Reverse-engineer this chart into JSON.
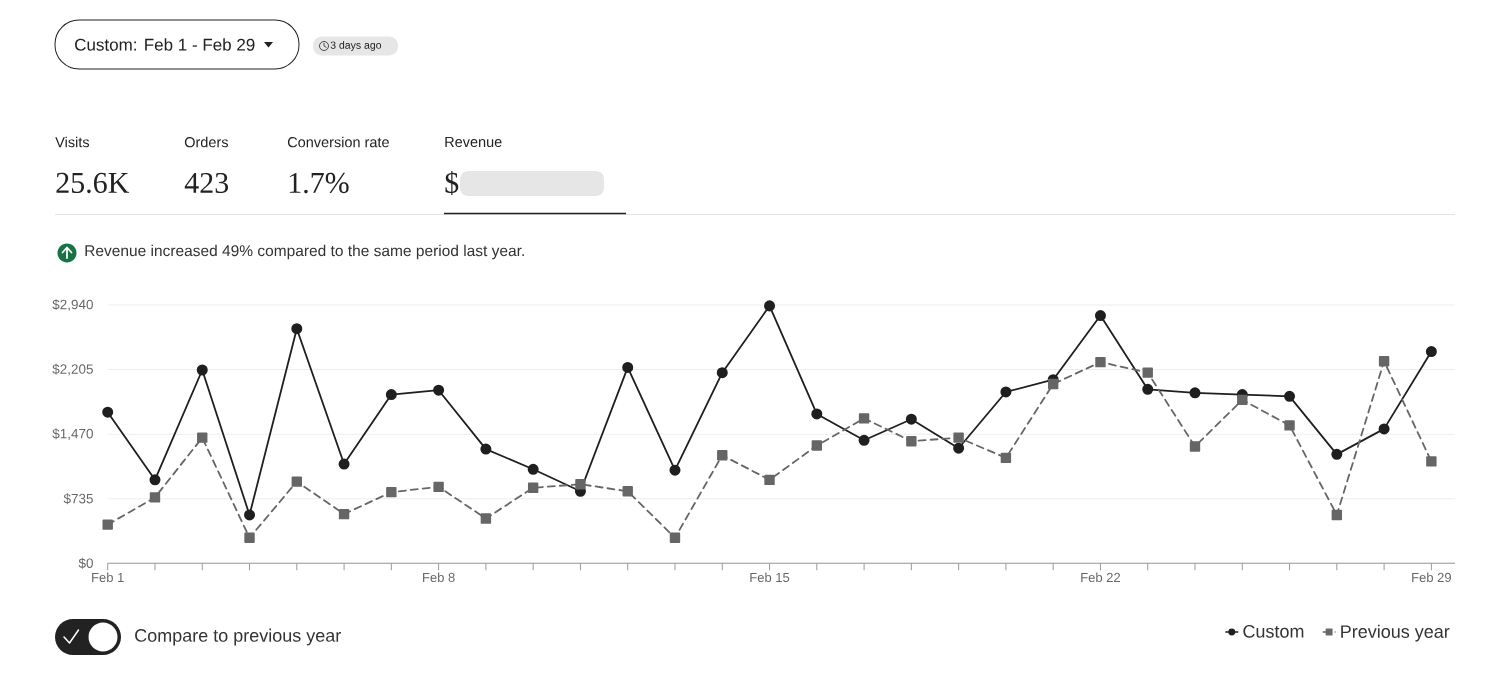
{
  "chart_data": {
    "type": "line",
    "title": "Custom: Feb 1 - Feb 29",
    "subtitle": "3 days ago",
    "annotations": [
      "Visits",
      "25.6K",
      "Orders",
      "423",
      "Conversion rate",
      "1.7%",
      "Revenue",
      "$",
      "Revenue increased 49% compared to the same period last year.",
      "Compare to previous year"
    ],
    "categories": [
      "Feb 1",
      null,
      null,
      null,
      null,
      null,
      null,
      "Feb 8",
      null,
      null,
      null,
      null,
      null,
      null,
      "Feb 15",
      null,
      null,
      null,
      null,
      null,
      null,
      "Feb 22",
      null,
      null,
      null,
      null,
      null,
      null,
      "Feb 29"
    ],
    "series": [
      {
        "name": "Custom",
        "color": "#1f1f1f",
        "marker": "circle",
        "line_style": "solid",
        "values": [
          1720,
          950,
          2200,
          550,
          2670,
          1130,
          1920,
          1970,
          1300,
          1070,
          820,
          2230,
          1060,
          2170,
          2930,
          1700,
          1400,
          1640,
          1310,
          1950,
          2090,
          2820,
          1980,
          1940,
          1920,
          1900,
          1240,
          1530,
          2410
        ]
      },
      {
        "name": "Previous year",
        "color": "#666666",
        "marker": "square",
        "line_style": "dashed",
        "values": [
          440,
          750,
          1430,
          290,
          930,
          560,
          810,
          870,
          510,
          860,
          900,
          820,
          290,
          1230,
          950,
          1340,
          1650,
          1390,
          1430,
          1200,
          2040,
          2290,
          2170,
          1330,
          1860,
          1570,
          550,
          2300,
          1160
        ]
      }
    ],
    "ylim": [
      0,
      2940
    ],
    "yticks": [
      {
        "value": 0,
        "label": "$0"
      },
      {
        "value": 735,
        "label": "$735"
      },
      {
        "value": 1470,
        "label": "$1,470"
      },
      {
        "value": 2205,
        "label": "$2,205"
      },
      {
        "value": 2940,
        "label": "$2,940"
      }
    ],
    "grid": "y",
    "legend": "bottom right"
  }
}
